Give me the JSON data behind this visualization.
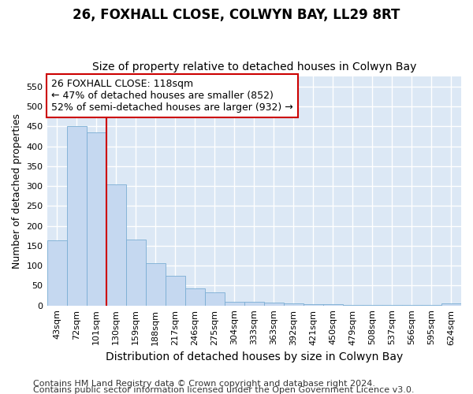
{
  "title": "26, FOXHALL CLOSE, COLWYN BAY, LL29 8RT",
  "subtitle": "Size of property relative to detached houses in Colwyn Bay",
  "xlabel": "Distribution of detached houses by size in Colwyn Bay",
  "ylabel": "Number of detached properties",
  "categories": [
    "43sqm",
    "72sqm",
    "101sqm",
    "130sqm",
    "159sqm",
    "188sqm",
    "217sqm",
    "246sqm",
    "275sqm",
    "304sqm",
    "333sqm",
    "363sqm",
    "392sqm",
    "421sqm",
    "450sqm",
    "479sqm",
    "508sqm",
    "537sqm",
    "566sqm",
    "595sqm",
    "624sqm"
  ],
  "values": [
    163,
    450,
    435,
    305,
    165,
    107,
    74,
    43,
    33,
    10,
    10,
    8,
    5,
    3,
    3,
    2,
    2,
    2,
    2,
    2,
    5
  ],
  "bar_color": "#c5d8f0",
  "bar_edge_color": "#7aadd4",
  "ylim": [
    0,
    575
  ],
  "yticks": [
    0,
    50,
    100,
    150,
    200,
    250,
    300,
    350,
    400,
    450,
    500,
    550
  ],
  "vline_x": 2.5,
  "annotation_text_line1": "26 FOXHALL CLOSE: 118sqm",
  "annotation_text_line2": "← 47% of detached houses are smaller (852)",
  "annotation_text_line3": "52% of semi-detached houses are larger (932) →",
  "annotation_box_facecolor": "#ffffff",
  "annotation_box_edgecolor": "#cc0000",
  "vline_color": "#cc0000",
  "footer_line1": "Contains HM Land Registry data © Crown copyright and database right 2024.",
  "footer_line2": "Contains public sector information licensed under the Open Government Licence v3.0.",
  "fig_facecolor": "#ffffff",
  "ax_facecolor": "#dce8f5",
  "grid_color": "#ffffff",
  "title_fontsize": 12,
  "subtitle_fontsize": 10,
  "ylabel_fontsize": 9,
  "xlabel_fontsize": 10,
  "tick_fontsize": 8,
  "annotation_fontsize": 9,
  "footer_fontsize": 8
}
